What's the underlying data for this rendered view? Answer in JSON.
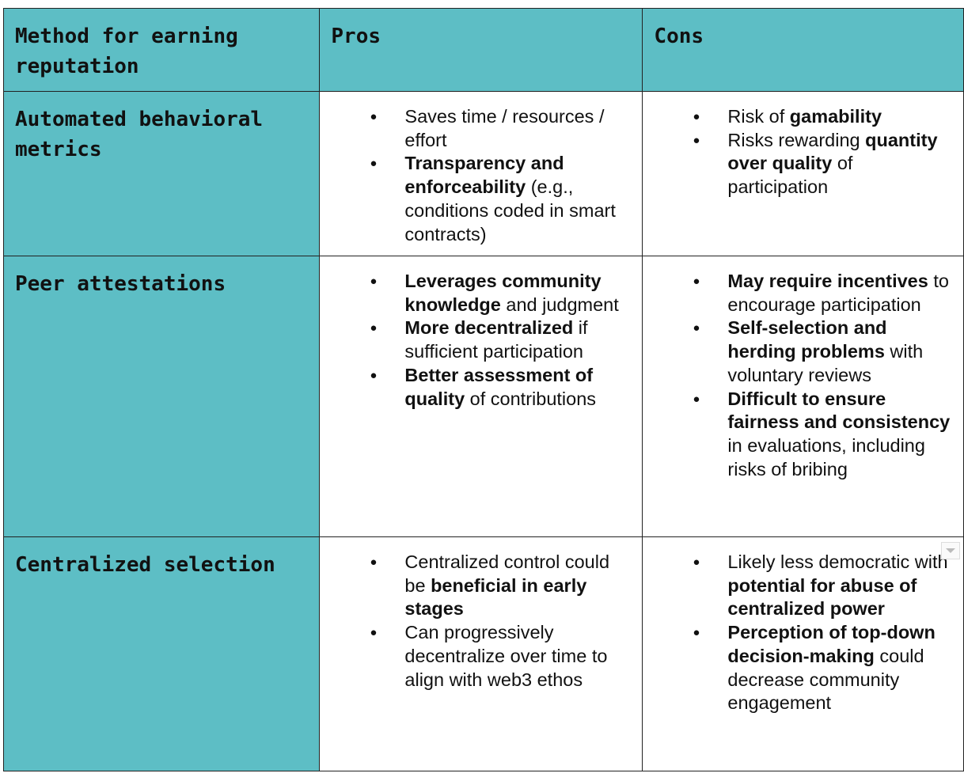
{
  "headers": [
    "Method for earning reputation",
    "Pros",
    "Cons"
  ],
  "colors": {
    "header_bg": "#5dbec5",
    "first_col_bg": "#5dbec5"
  },
  "rows": [
    {
      "method": "Automated behavioral metrics",
      "pros": [
        [
          {
            "t": "Saves time / resources / effort"
          }
        ],
        [
          {
            "t": "Transparency and enforceability",
            "b": true
          },
          {
            "t": " (e.g., conditions coded in smart contracts)"
          }
        ]
      ],
      "cons": [
        [
          {
            "t": "Risk of "
          },
          {
            "t": "gamability",
            "b": true
          }
        ],
        [
          {
            "t": "Risks rewarding "
          },
          {
            "t": "quantity over quality",
            "b": true
          },
          {
            "t": " of participation"
          }
        ]
      ]
    },
    {
      "method": "Peer attestations",
      "pros": [
        [
          {
            "t": "Leverages community knowledge",
            "b": true
          },
          {
            "t": " and judgment"
          }
        ],
        [
          {
            "t": "More decentralized",
            "b": true
          },
          {
            "t": " if sufficient participation"
          }
        ],
        [
          {
            "t": "Better assessment of quality",
            "b": true
          },
          {
            "t": " of contributions"
          }
        ]
      ],
      "cons": [
        [
          {
            "t": "May require incentives",
            "b": true
          },
          {
            "t": " to encourage participation"
          }
        ],
        [
          {
            "t": "Self-selection and herding problems",
            "b": true
          },
          {
            "t": " with voluntary reviews"
          }
        ],
        [
          {
            "t": "Difficult to ensure fairness and consistency",
            "b": true
          },
          {
            "t": " in evaluations, including risks of bribing"
          }
        ]
      ]
    },
    {
      "method": "Centralized selection",
      "pros": [
        [
          {
            "t": "Centralized control could be "
          },
          {
            "t": "beneficial in early stages",
            "b": true
          }
        ],
        [
          {
            "t": "Can progressively decentralize over time to align with web3 ethos"
          }
        ]
      ],
      "cons": [
        [
          {
            "t": "Likely less democratic with "
          },
          {
            "t": "potential for abuse of centralized power",
            "b": true
          }
        ],
        [
          {
            "t": "Perception of top-down decision-making",
            "b": true
          },
          {
            "t": " could decrease community engagement"
          }
        ]
      ]
    }
  ],
  "icons": {
    "cell_menu": "dropdown-arrow-icon"
  }
}
